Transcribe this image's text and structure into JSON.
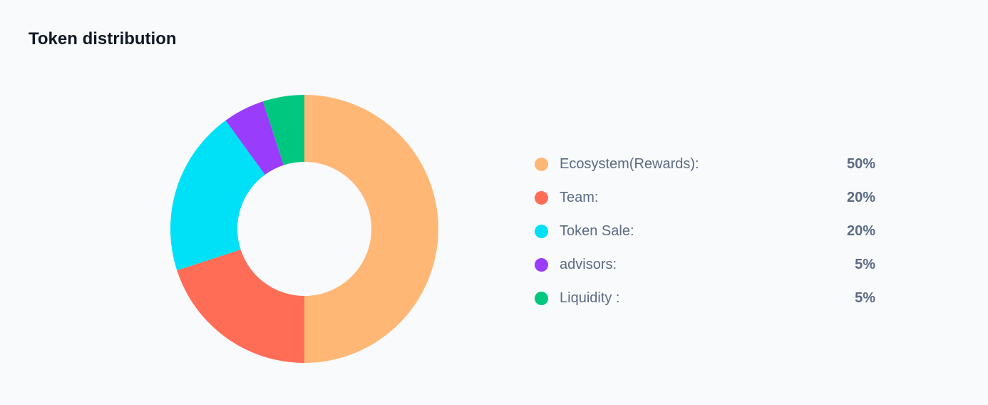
{
  "header": {
    "title": "Token distribution"
  },
  "chart_data": {
    "type": "pie",
    "title": "Token distribution",
    "donut": true,
    "legend_position": "right",
    "categories": [
      "Ecosystem(Rewards):",
      "Team:",
      "Token Sale:",
      "advisors:",
      "Liquidity :"
    ],
    "values": [
      50,
      20,
      20,
      5,
      5
    ],
    "value_labels": [
      "50%",
      "20%",
      "20%",
      "5%",
      "5%"
    ],
    "colors": [
      "#ffb775",
      "#ff6d57",
      "#00e1f7",
      "#993cfb",
      "#00c77f"
    ]
  }
}
